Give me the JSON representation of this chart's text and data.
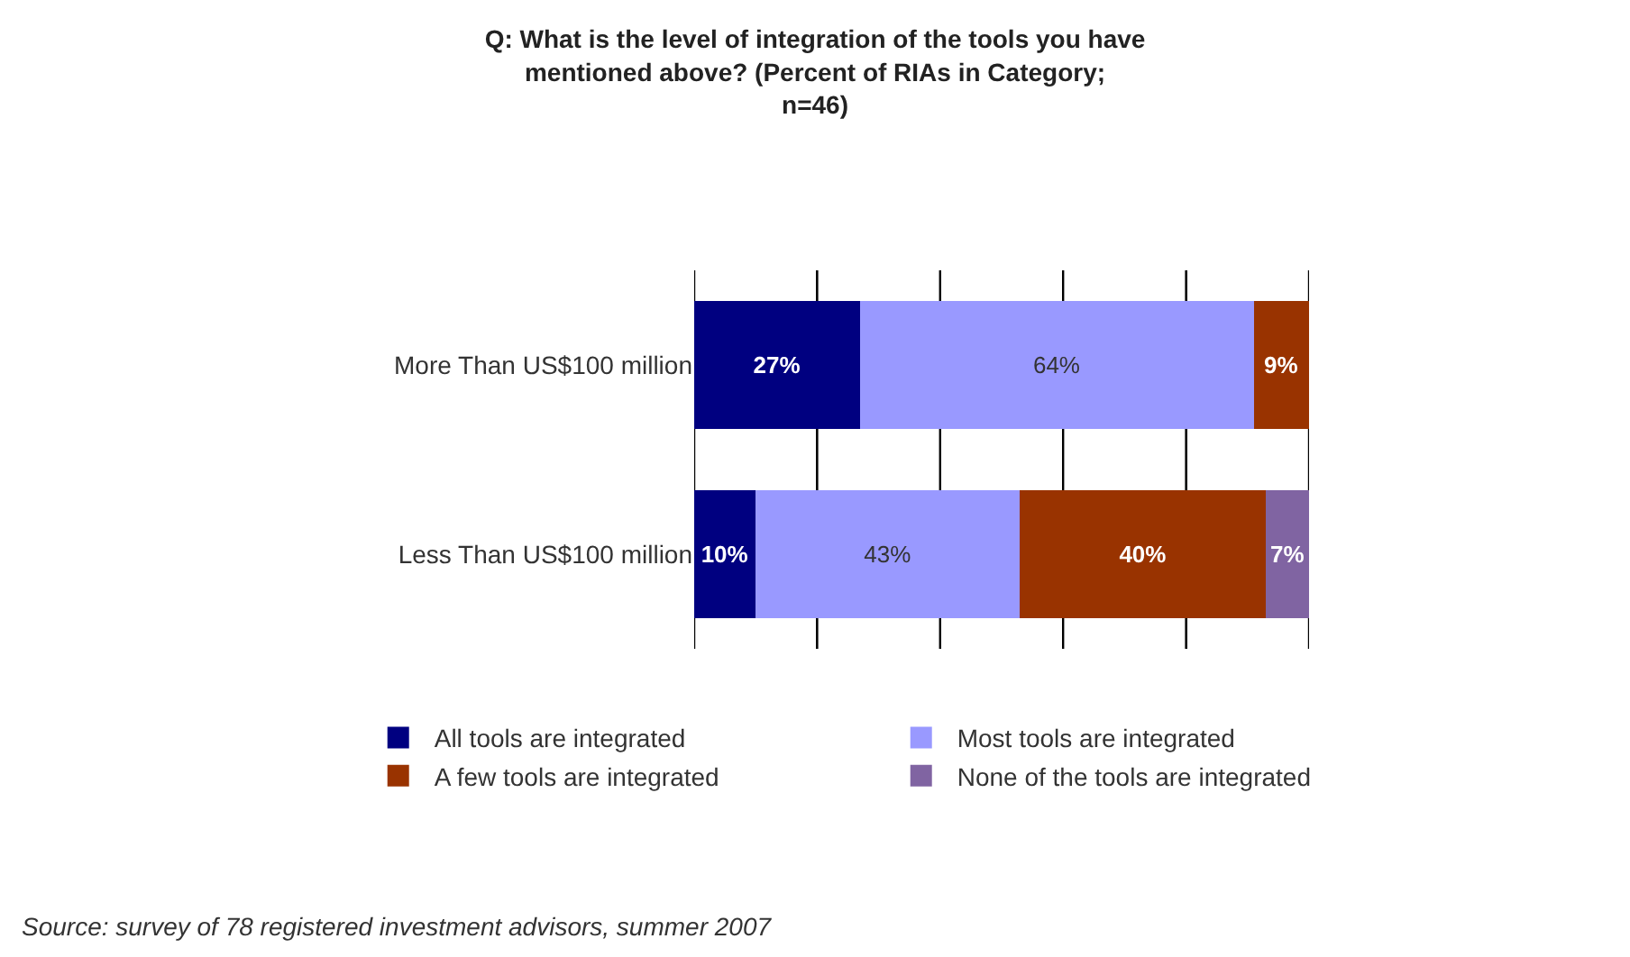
{
  "chart_data": {
    "type": "bar",
    "orientation": "horizontal",
    "stacked": true,
    "title": "Q: What is the level of integration of the tools you have\nmentioned above? (Percent of RIAs in Category;\nn=46)",
    "categories": [
      "More Than US$100 million",
      "Less Than US$100 million"
    ],
    "series": [
      {
        "name": "All tools are integrated",
        "color": "#000080",
        "values": [
          27,
          10
        ],
        "value_labels": [
          "27%",
          "10%"
        ]
      },
      {
        "name": "Most tools are integrated",
        "color": "#9999ff",
        "values": [
          64,
          43
        ],
        "value_labels": [
          "64%",
          "43%"
        ]
      },
      {
        "name": "A few tools are integrated",
        "color": "#993300",
        "values": [
          9,
          40
        ],
        "value_labels": [
          "9%",
          "40%"
        ]
      },
      {
        "name": "None of the tools are integrated",
        "color": "#8064a2",
        "values": [
          null,
          7
        ],
        "value_labels": [
          null,
          "7%"
        ]
      }
    ],
    "xlim": [
      0,
      100
    ],
    "xticks": [
      {
        "value": 0,
        "label": null
      },
      {
        "value": 20,
        "label": null
      },
      {
        "value": 40,
        "label": null
      },
      {
        "value": 60,
        "label": null
      },
      {
        "value": 80,
        "label": null
      },
      {
        "value": 100,
        "label": null
      }
    ],
    "tick_labels": "y",
    "grid": "x",
    "legend": "bottom",
    "annotations": [
      "Source: survey of 78 registered investment advisors, summer 2007"
    ]
  }
}
